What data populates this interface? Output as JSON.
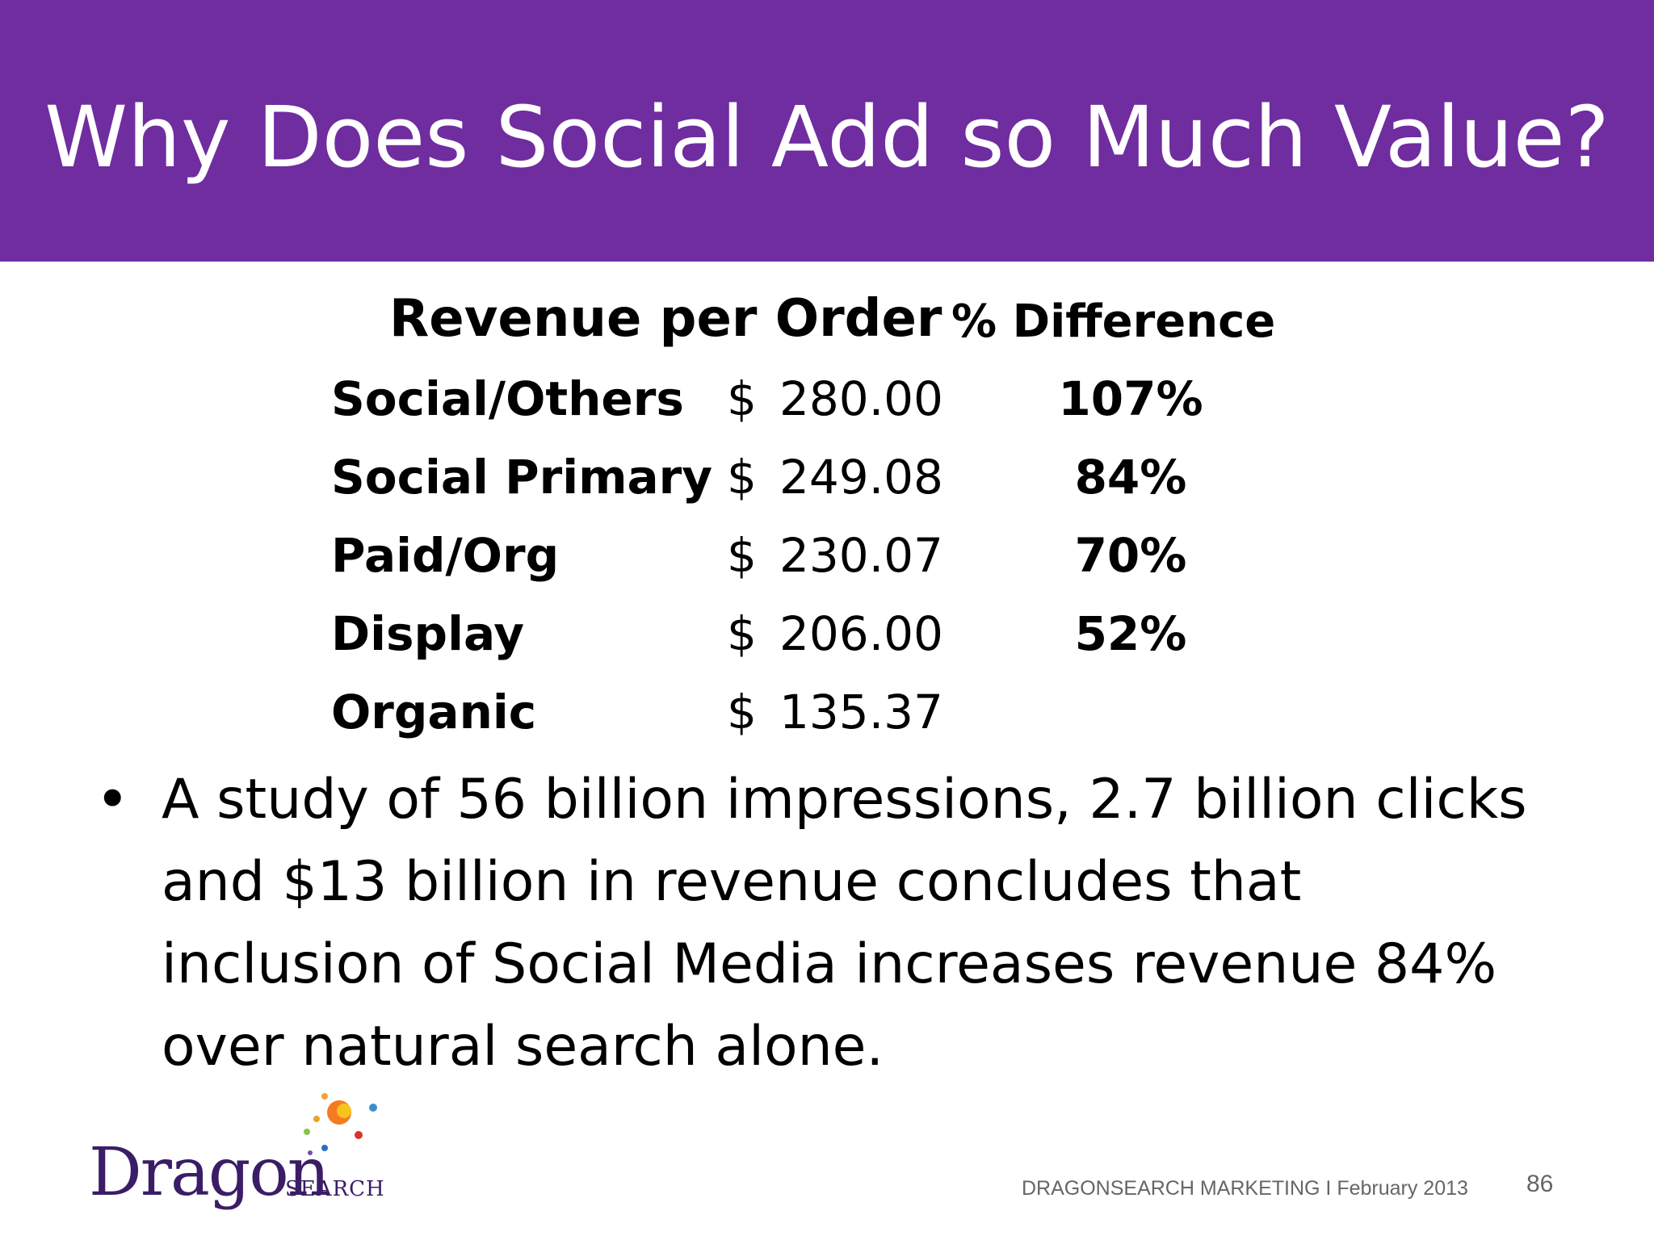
{
  "slide": {
    "title": "Why Does Social Add so Much Value?",
    "colors": {
      "header": "#6f2da0",
      "text": "#000000",
      "footer_text": "#666666"
    }
  },
  "table": {
    "header_revenue": "Revenue per Order",
    "header_difference": "% Difference",
    "currency_symbol": "$",
    "rows": [
      {
        "label": "Social/Others",
        "value": "280.00",
        "difference": "107%"
      },
      {
        "label": "Social Primary",
        "value": "249.08",
        "difference": "84%"
      },
      {
        "label": "Paid/Org",
        "value": "230.07",
        "difference": "70%"
      },
      {
        "label": "Display",
        "value": "206.00",
        "difference": "52%"
      },
      {
        "label": "Organic",
        "value": "135.37",
        "difference": ""
      }
    ]
  },
  "body": {
    "bullet_glyph": "•",
    "text": "A study of 56 billion impressions, 2.7 billion clicks and $13 billion in revenue concludes that inclusion of Social Media increases revenue 84% over natural search alone."
  },
  "logo": {
    "word": "Dragon",
    "sub": "SEARCH"
  },
  "footer": {
    "text": "DRAGONSEARCH MARKETING I  February 2013",
    "page_number": "86"
  }
}
